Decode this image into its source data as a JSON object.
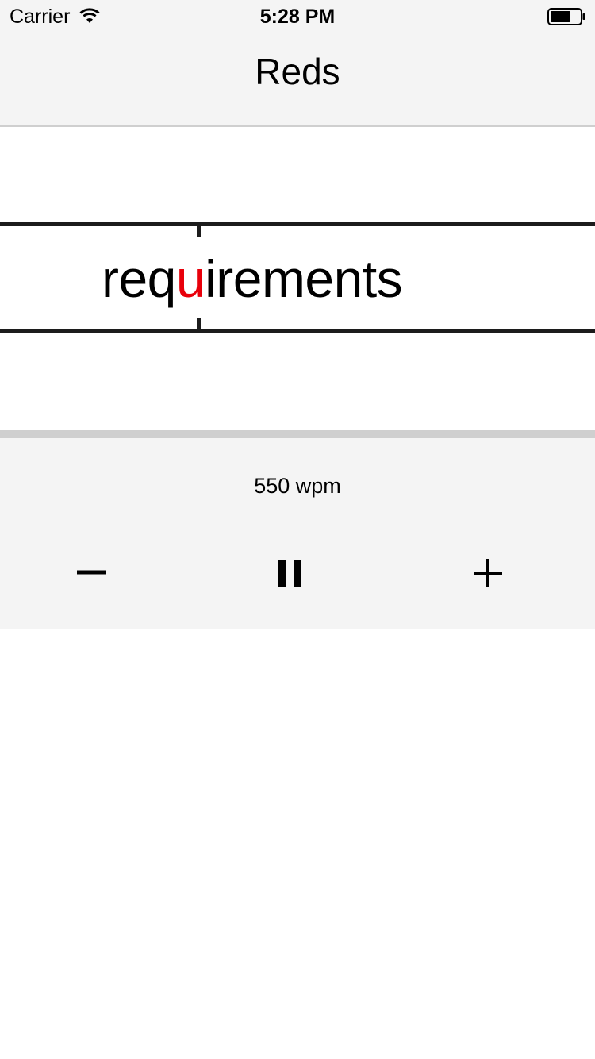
{
  "status_bar": {
    "carrier": "Carrier",
    "time": "5:28 PM",
    "wifi_icon": "wifi-icon",
    "battery_icon": "battery-icon"
  },
  "nav": {
    "title": "Reds"
  },
  "reader": {
    "word_prefix": "req",
    "word_focus": "u",
    "word_suffix": "irements",
    "focus_color": "#e8000b"
  },
  "controls": {
    "speed": "550 wpm",
    "decrease_icon": "minus-icon",
    "pause_icon": "pause-icon",
    "increase_icon": "plus-icon"
  }
}
